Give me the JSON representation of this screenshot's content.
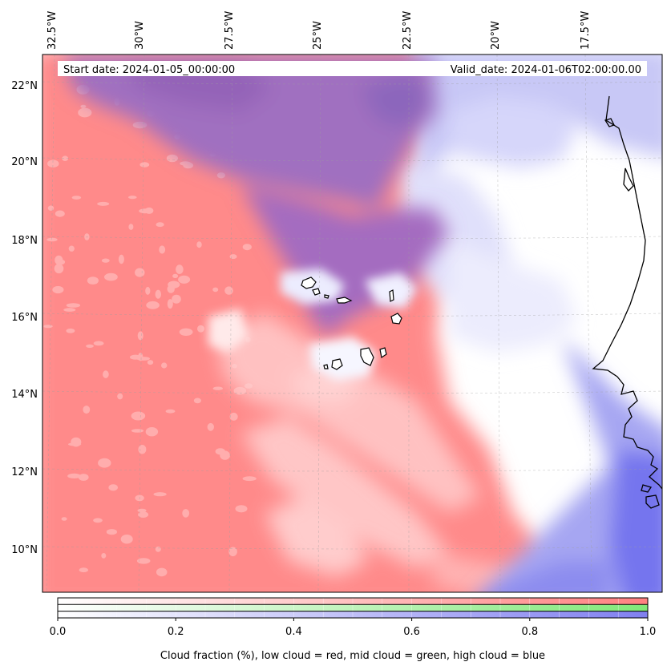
{
  "header": {
    "start_label": "Start date: 2024-01-05_00:00:00",
    "valid_label": "Valid_date: 2024-01-06T02:00:00.00"
  },
  "map": {
    "region": "Cape Verde / West Africa coast",
    "lon_labels": [
      "32.5°W",
      "30°W",
      "27.5°W",
      "25°W",
      "22.5°W",
      "20°W",
      "17.5°W"
    ],
    "lat_labels": [
      "22°N",
      "20°N",
      "18°N",
      "16°N",
      "14°N",
      "12°N",
      "10°N"
    ],
    "gridlines": true,
    "colors": {
      "low_cloud": "#ff8080",
      "mid_cloud": "#80e080",
      "high_cloud": "#8080f0",
      "low_high_mix": "#9a68b8"
    }
  },
  "colorbar": {
    "ticks": [
      "0.0",
      "0.2",
      "0.4",
      "0.6",
      "0.8",
      "1.0"
    ],
    "label": "Cloud fraction (%), low cloud = red, mid cloud = green, high cloud = blue",
    "rows": [
      {
        "name": "low",
        "end_color": "#ff8080"
      },
      {
        "name": "mid",
        "end_color": "#80e878"
      },
      {
        "name": "high",
        "end_color": "#8080f0"
      }
    ]
  }
}
